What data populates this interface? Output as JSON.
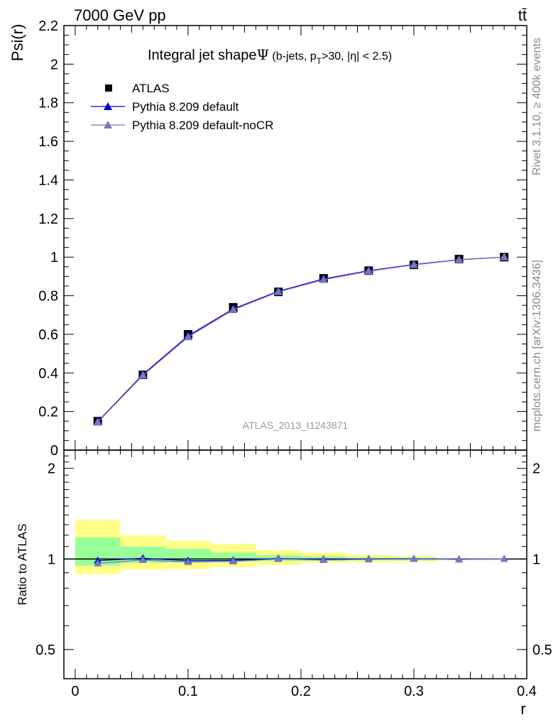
{
  "header": {
    "energy_label": "7000 GeV pp",
    "process_label": "tt̄"
  },
  "side": {
    "rivet_label": "Rivet 3.1.10, ≥ 400k events",
    "mcplots_label": "mcplots.cern.ch [arXiv:1306.3436]"
  },
  "watermark": "ATLAS_2013_I1243871",
  "chart_data": [
    {
      "type": "line",
      "panel": "main",
      "title": "Integral jet shapeΨ (b-jets, p_T>30, |η| < 2.5)",
      "title_parts": {
        "main": "Integral jet shape",
        "psi": "Ψ",
        "tail1": " (b-jets, p",
        "sub": "T",
        "tail2": ">30, |η| < 2.5)"
      },
      "ylabel": "Psi(r)",
      "xlabel": "r",
      "xlim": [
        -0.01,
        0.4
      ],
      "ylim": [
        0,
        2.2
      ],
      "x": [
        0.02,
        0.06,
        0.1,
        0.14,
        0.18,
        0.22,
        0.26,
        0.3,
        0.34,
        0.38
      ],
      "xticks": [
        0,
        0.1,
        0.2,
        0.3,
        0.4
      ],
      "xtick_labels": [
        "0",
        "0.1",
        "0.2",
        "0.3",
        "0.4"
      ],
      "yticks": [
        0,
        0.2,
        0.4,
        0.6,
        0.8,
        1,
        1.2,
        1.4,
        1.6,
        1.8,
        2,
        2.2
      ],
      "ytick_labels": [
        "0",
        "0.2",
        "0.4",
        "0.6",
        "0.8",
        "1",
        "1.2",
        "1.4",
        "1.6",
        "1.8",
        "2",
        "2.2"
      ],
      "legend_position": "top-left",
      "series": [
        {
          "name": "ATLAS",
          "marker": "square",
          "color": "#000000",
          "values": [
            0.15,
            0.39,
            0.6,
            0.74,
            0.82,
            0.89,
            0.93,
            0.96,
            0.99,
            1.0
          ]
        },
        {
          "name": "Pythia 8.209 default",
          "marker": "triangle",
          "color": "#0000cc",
          "values": [
            0.148,
            0.392,
            0.592,
            0.732,
            0.823,
            0.887,
            0.93,
            0.962,
            0.987,
            1.0
          ]
        },
        {
          "name": "Pythia 8.209 default-noCR",
          "marker": "triangle",
          "color": "#7777bb",
          "values": [
            0.145,
            0.387,
            0.586,
            0.727,
            0.82,
            0.883,
            0.927,
            0.96,
            0.986,
            1.0
          ]
        }
      ]
    },
    {
      "type": "line",
      "panel": "ratio",
      "ylabel": "Ratio to ATLAS",
      "xlabel": "r",
      "xlim": [
        -0.01,
        0.4
      ],
      "ylim": [
        0.4,
        2.3
      ],
      "yscale": "log",
      "ytick_labels": {
        "major": [
          0.5,
          1,
          2
        ],
        "labels": [
          "0.5",
          "1",
          "2"
        ]
      },
      "x": [
        0.02,
        0.06,
        0.1,
        0.14,
        0.18,
        0.22,
        0.26,
        0.3,
        0.34,
        0.38
      ],
      "bin_edges": [
        0.0,
        0.04,
        0.08,
        0.12,
        0.16,
        0.2,
        0.24,
        0.28,
        0.32
      ],
      "band_stat": {
        "color": "#99ff99",
        "lower": [
          0.95,
          0.97,
          0.975,
          0.98,
          0.985,
          0.985,
          0.99,
          0.99
        ],
        "upper": [
          1.18,
          1.1,
          1.08,
          1.05,
          1.03,
          1.02,
          1.01,
          1.01
        ]
      },
      "band_total": {
        "color": "#ffff88",
        "lower": [
          0.89,
          0.92,
          0.925,
          0.94,
          0.955,
          0.97,
          0.975,
          0.98
        ],
        "upper": [
          1.35,
          1.2,
          1.15,
          1.12,
          1.07,
          1.05,
          1.03,
          1.02
        ]
      },
      "series": [
        {
          "name": "Pythia 8.209 default",
          "color": "#0000cc",
          "values": [
            0.987,
            1.005,
            0.987,
            0.989,
            1.004,
            0.997,
            1.0,
            1.002,
            0.997,
            1.0
          ]
        },
        {
          "name": "Pythia 8.209 default-noCR",
          "color": "#7777bb",
          "values": [
            0.967,
            0.992,
            0.977,
            0.982,
            1.0,
            0.992,
            0.997,
            1.0,
            0.996,
            1.0
          ]
        }
      ]
    }
  ]
}
